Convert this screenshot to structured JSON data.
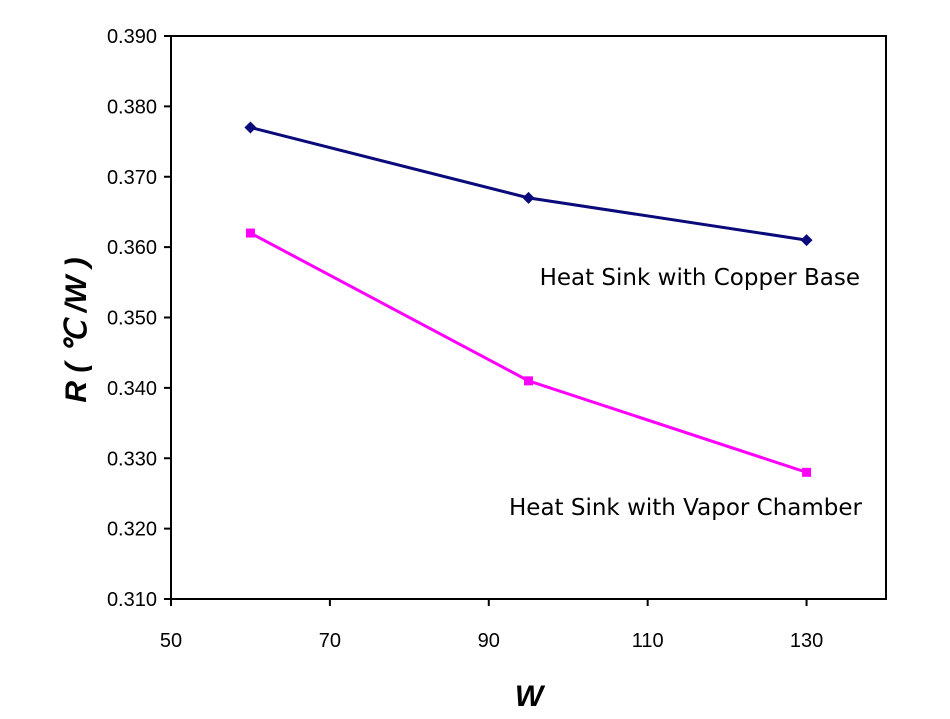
{
  "chart_data": {
    "type": "line",
    "title": "",
    "xlabel": "W",
    "ylabel": "R ( ℃ /W )",
    "xlim": [
      50,
      140
    ],
    "ylim": [
      0.31,
      0.39
    ],
    "x_ticks": [
      50,
      70,
      90,
      110,
      130
    ],
    "y_ticks": [
      0.31,
      0.32,
      0.33,
      0.34,
      0.35,
      0.36,
      0.37,
      0.38,
      0.39
    ],
    "x_tick_labels": [
      "50",
      "70",
      "90",
      "110",
      "130"
    ],
    "y_tick_labels": [
      "0.310",
      "0.320",
      "0.330",
      "0.340",
      "0.350",
      "0.360",
      "0.370",
      "0.380",
      "0.390"
    ],
    "grid": false,
    "legend": "none",
    "x": [
      60,
      95,
      130
    ],
    "series": [
      {
        "name": "Heat Sink with Copper Base",
        "values": [
          0.377,
          0.367,
          0.361
        ],
        "color": "#0a0a7a",
        "marker": "diamond"
      },
      {
        "name": "Heat Sink with Vapor Chamber",
        "values": [
          0.362,
          0.341,
          0.328
        ],
        "color": "#ff00ff",
        "marker": "square"
      }
    ]
  }
}
